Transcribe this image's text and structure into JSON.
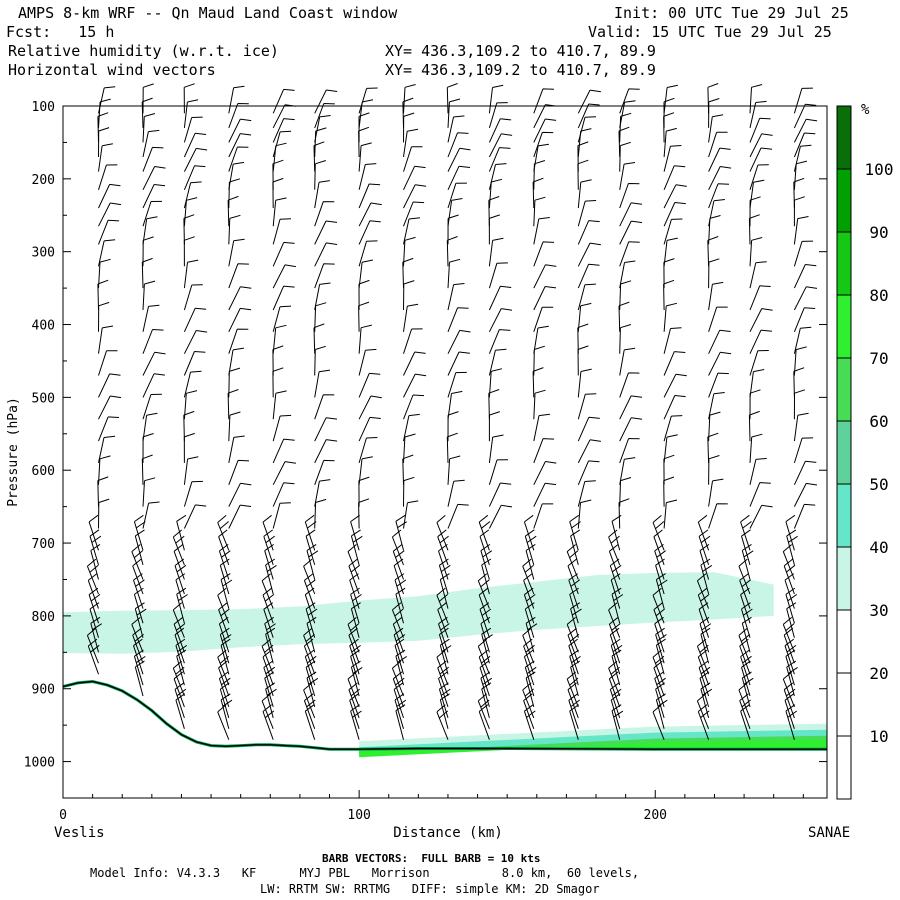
{
  "header": {
    "title": "AMPS 8-km WRF -- Qn Maud Land Coast window",
    "fcst": "Fcst:   15 h",
    "init": "Init: 00 UTC Tue 29 Jul 25",
    "valid": "Valid: 15 UTC Tue 29 Jul 25",
    "field1": "Relative humidity (w.r.t. ice)",
    "field2": "Horizontal wind vectors",
    "xy1": "XY= 436.3,109.2 to 410.7, 89.9",
    "xy2": "XY= 436.3,109.2 to 410.7, 89.9"
  },
  "footer": {
    "barb_note": "BARB VECTORS:  FULL BARB = 10 kts",
    "model_info": "Model Info: V4.3.3   KF      MYJ PBL   Morrison          8.0 km,  60 levels,",
    "model_info2": "LW: RRTM SW: RRTMG   DIFF: simple KM: 2D Smagor"
  },
  "chart_data": {
    "type": "cross-section",
    "xlabel": "Distance (km)",
    "ylabel": "Pressure (hPa)",
    "x_left_label": "Veslis",
    "x_right_label": "SANAE",
    "xlim": [
      0,
      258
    ],
    "ylim": [
      1050,
      100
    ],
    "x_ticks": [
      0,
      100,
      200
    ],
    "y_ticks": [
      100,
      200,
      300,
      400,
      500,
      600,
      700,
      800,
      900,
      1000
    ],
    "colorbar": {
      "unit": "%",
      "ticks": [
        10,
        20,
        30,
        40,
        50,
        60,
        70,
        80,
        90,
        100
      ],
      "levels": [
        0,
        10,
        20,
        30,
        40,
        50,
        60,
        70,
        80,
        90,
        100,
        110
      ],
      "colors": [
        "#ffffff",
        "#ffffff",
        "#ffffff",
        "#c8f5e6",
        "#66e6c8",
        "#5ed29a",
        "#46dc55",
        "#2ef02e",
        "#14c814",
        "#00a000",
        "#0a6e0a",
        "#4b6419"
      ]
    },
    "terrain": {
      "distance_km": [
        0,
        5,
        10,
        15,
        20,
        25,
        30,
        35,
        40,
        45,
        50,
        55,
        60,
        65,
        70,
        75,
        80,
        85,
        90,
        100,
        120,
        150,
        200,
        258
      ],
      "surface_pressure_hPa": [
        897,
        892,
        890,
        895,
        903,
        915,
        930,
        948,
        963,
        973,
        978,
        979,
        978,
        977,
        977,
        978,
        979,
        981,
        983,
        983,
        982,
        982,
        983,
        983
      ]
    },
    "rh_band": {
      "value_range": "30-40",
      "distance_km": [
        0,
        20,
        40,
        60,
        80,
        100,
        120,
        140,
        160,
        180,
        200,
        220,
        240
      ],
      "top_hPa": [
        795,
        793,
        792,
        791,
        787,
        779,
        773,
        762,
        753,
        744,
        741,
        740,
        757
      ],
      "bottom_hPa": [
        851,
        852,
        849,
        843,
        839,
        837,
        834,
        826,
        819,
        814,
        809,
        805,
        800
      ]
    },
    "rh_surface_layer": {
      "value_range": "40-100",
      "distance_km": [
        100,
        150,
        200,
        258
      ],
      "top_hPa": [
        972,
        962,
        952,
        948
      ]
    },
    "barbs": {
      "columns_distance_km": [
        12,
        27,
        41,
        56,
        71,
        85,
        100,
        115,
        130,
        144,
        159,
        174,
        188,
        203,
        218,
        232,
        247
      ],
      "pressure_levels_hPa": [
        110,
        130,
        150,
        170,
        190,
        215,
        240,
        265,
        290,
        320,
        350,
        380,
        410,
        440,
        470,
        500,
        530,
        560,
        590,
        620,
        650,
        680,
        710,
        730,
        750,
        770,
        790,
        810,
        830,
        850,
        865,
        880,
        895,
        910,
        925,
        940,
        955,
        970,
        985
      ]
    }
  }
}
